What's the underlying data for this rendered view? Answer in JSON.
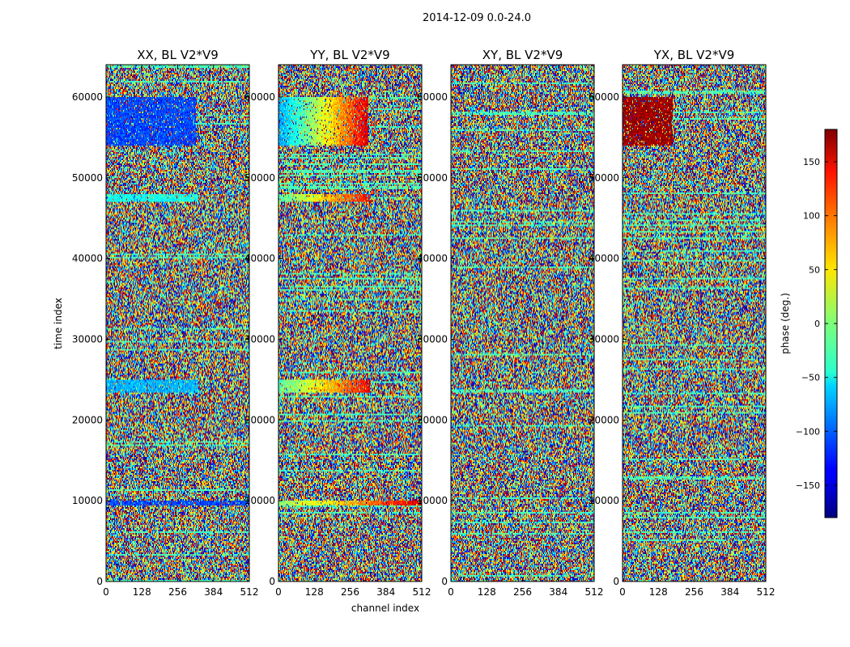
{
  "figure": {
    "suptitle": "2014-12-09 0.0-24.0",
    "xlabel": "channel index",
    "ylabel": "time index"
  },
  "colorbar": {
    "label": "phase (deg.)",
    "range": [
      -180,
      180
    ],
    "ticks": [
      -150,
      -100,
      -50,
      0,
      50,
      100,
      150
    ],
    "tick_labels": [
      "−150",
      "−100",
      "−50",
      "0",
      "50",
      "100",
      "150"
    ],
    "colormap": "jet"
  },
  "chart_data": [
    {
      "type": "heatmap",
      "title": "XX, BL V2*V9",
      "xlim": [
        0,
        512
      ],
      "ylim": [
        0,
        64000
      ],
      "xticks": [
        0,
        128,
        256,
        384,
        512
      ],
      "yticks": [
        0,
        10000,
        20000,
        30000,
        40000,
        50000,
        60000
      ],
      "value_range": [
        -180,
        180
      ],
      "coherent_bands": [
        {
          "y": [
            54000,
            60000
          ],
          "x": [
            0,
            320
          ],
          "phase_deg": -110
        },
        {
          "y": [
            47000,
            48000
          ],
          "x": [
            0,
            330
          ],
          "phase_deg": -40
        },
        {
          "y": [
            23500,
            25000
          ],
          "x": [
            0,
            330
          ],
          "phase_deg": -70
        },
        {
          "y": [
            9500,
            10000
          ],
          "x": [
            0,
            512
          ],
          "phase_deg": -110
        }
      ]
    },
    {
      "type": "heatmap",
      "title": "YY, BL V2*V9",
      "xlim": [
        0,
        512
      ],
      "ylim": [
        0,
        64000
      ],
      "xticks": [
        0,
        128,
        256,
        384,
        512
      ],
      "yticks": [
        0,
        10000,
        20000,
        30000,
        40000,
        50000,
        60000
      ],
      "value_range": [
        -180,
        180
      ],
      "coherent_bands": [
        {
          "y": [
            54000,
            60000
          ],
          "x": [
            0,
            320
          ],
          "phase_deg_gradient": [
            -80,
            150
          ]
        },
        {
          "y": [
            47000,
            48000
          ],
          "x": [
            0,
            330
          ],
          "phase_deg_gradient": [
            -20,
            140
          ]
        },
        {
          "y": [
            23500,
            25000
          ],
          "x": [
            0,
            330
          ],
          "phase_deg_gradient": [
            -20,
            140
          ]
        },
        {
          "y": [
            9500,
            10000
          ],
          "x": [
            0,
            512
          ],
          "phase_deg_gradient": [
            0,
            150
          ]
        }
      ]
    },
    {
      "type": "heatmap",
      "title": "XY, BL V2*V9",
      "xlim": [
        0,
        512
      ],
      "ylim": [
        0,
        64000
      ],
      "xticks": [
        0,
        128,
        256,
        384,
        512
      ],
      "yticks": [
        0,
        10000,
        20000,
        30000,
        40000,
        50000,
        60000
      ],
      "value_range": [
        -180,
        180
      ],
      "coherent_bands": []
    },
    {
      "type": "heatmap",
      "title": "YX, BL V2*V9",
      "xlim": [
        0,
        512
      ],
      "ylim": [
        0,
        64000
      ],
      "xticks": [
        0,
        128,
        256,
        384,
        512
      ],
      "yticks": [
        0,
        10000,
        20000,
        30000,
        40000,
        50000,
        60000
      ],
      "value_range": [
        -180,
        180
      ],
      "coherent_bands": [
        {
          "y": [
            54000,
            60000
          ],
          "x": [
            0,
            180
          ],
          "phase_deg": 170
        }
      ]
    }
  ]
}
